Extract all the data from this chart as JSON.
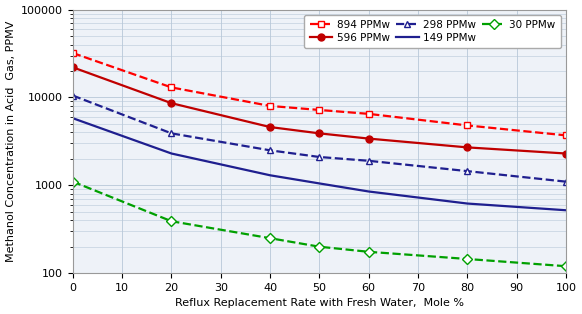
{
  "xlabel": "Reflux Replacement Rate with Fresh Water,  Mole %",
  "ylabel": "Methanol Concentration in Acid  Gas, PPMV",
  "xlim": [
    0,
    100
  ],
  "ylim": [
    100,
    100000
  ],
  "xticks": [
    0,
    10,
    20,
    30,
    40,
    50,
    60,
    70,
    80,
    90,
    100
  ],
  "yticks": [
    100,
    1000,
    10000,
    100000
  ],
  "series": [
    {
      "label": "894 PPMw",
      "color": "#FF0000",
      "linestyle": "--",
      "marker": "s",
      "markerfacecolor": "white",
      "markeredgecolor": "#FF0000",
      "markersize": 5,
      "x": [
        0,
        20,
        40,
        50,
        60,
        80,
        100
      ],
      "y": [
        32000,
        13000,
        8000,
        7200,
        6500,
        4800,
        3700
      ]
    },
    {
      "label": "596 PPMw",
      "color": "#C00000",
      "linestyle": "-",
      "marker": "o",
      "markerfacecolor": "#C00000",
      "markeredgecolor": "#C00000",
      "markersize": 5,
      "x": [
        0,
        20,
        40,
        50,
        60,
        80,
        100
      ],
      "y": [
        22000,
        8600,
        4600,
        3900,
        3400,
        2700,
        2300
      ]
    },
    {
      "label": "298 PPMw",
      "color": "#1F1F8F",
      "linestyle": "--",
      "marker": "^",
      "markerfacecolor": "white",
      "markeredgecolor": "#1F1F8F",
      "markersize": 5,
      "x": [
        0,
        20,
        40,
        50,
        60,
        80,
        100
      ],
      "y": [
        10500,
        3900,
        2500,
        2100,
        1900,
        1450,
        1100
      ]
    },
    {
      "label": "149 PPMw",
      "color": "#1F1F8F",
      "linestyle": "-",
      "marker": "None",
      "markerfacecolor": "white",
      "markeredgecolor": "#1F1F8F",
      "markersize": 0,
      "x": [
        0,
        20,
        40,
        50,
        60,
        80,
        100
      ],
      "y": [
        5800,
        2300,
        1300,
        1050,
        850,
        620,
        520
      ]
    },
    {
      "label": "30 PPMw",
      "color": "#00A000",
      "linestyle": "--",
      "marker": "D",
      "markerfacecolor": "white",
      "markeredgecolor": "#00A000",
      "markersize": 5,
      "x": [
        0,
        20,
        40,
        50,
        60,
        80,
        100
      ],
      "y": [
        1100,
        390,
        250,
        200,
        175,
        145,
        120
      ]
    }
  ],
  "legend_order": [
    0,
    1,
    2,
    3,
    4
  ],
  "grid_color": "#B8C8D8",
  "bg_color": "#EEF2F8",
  "figure_bg": "#FFFFFF",
  "tick_fontsize": 8,
  "label_fontsize": 8,
  "legend_fontsize": 7.5
}
